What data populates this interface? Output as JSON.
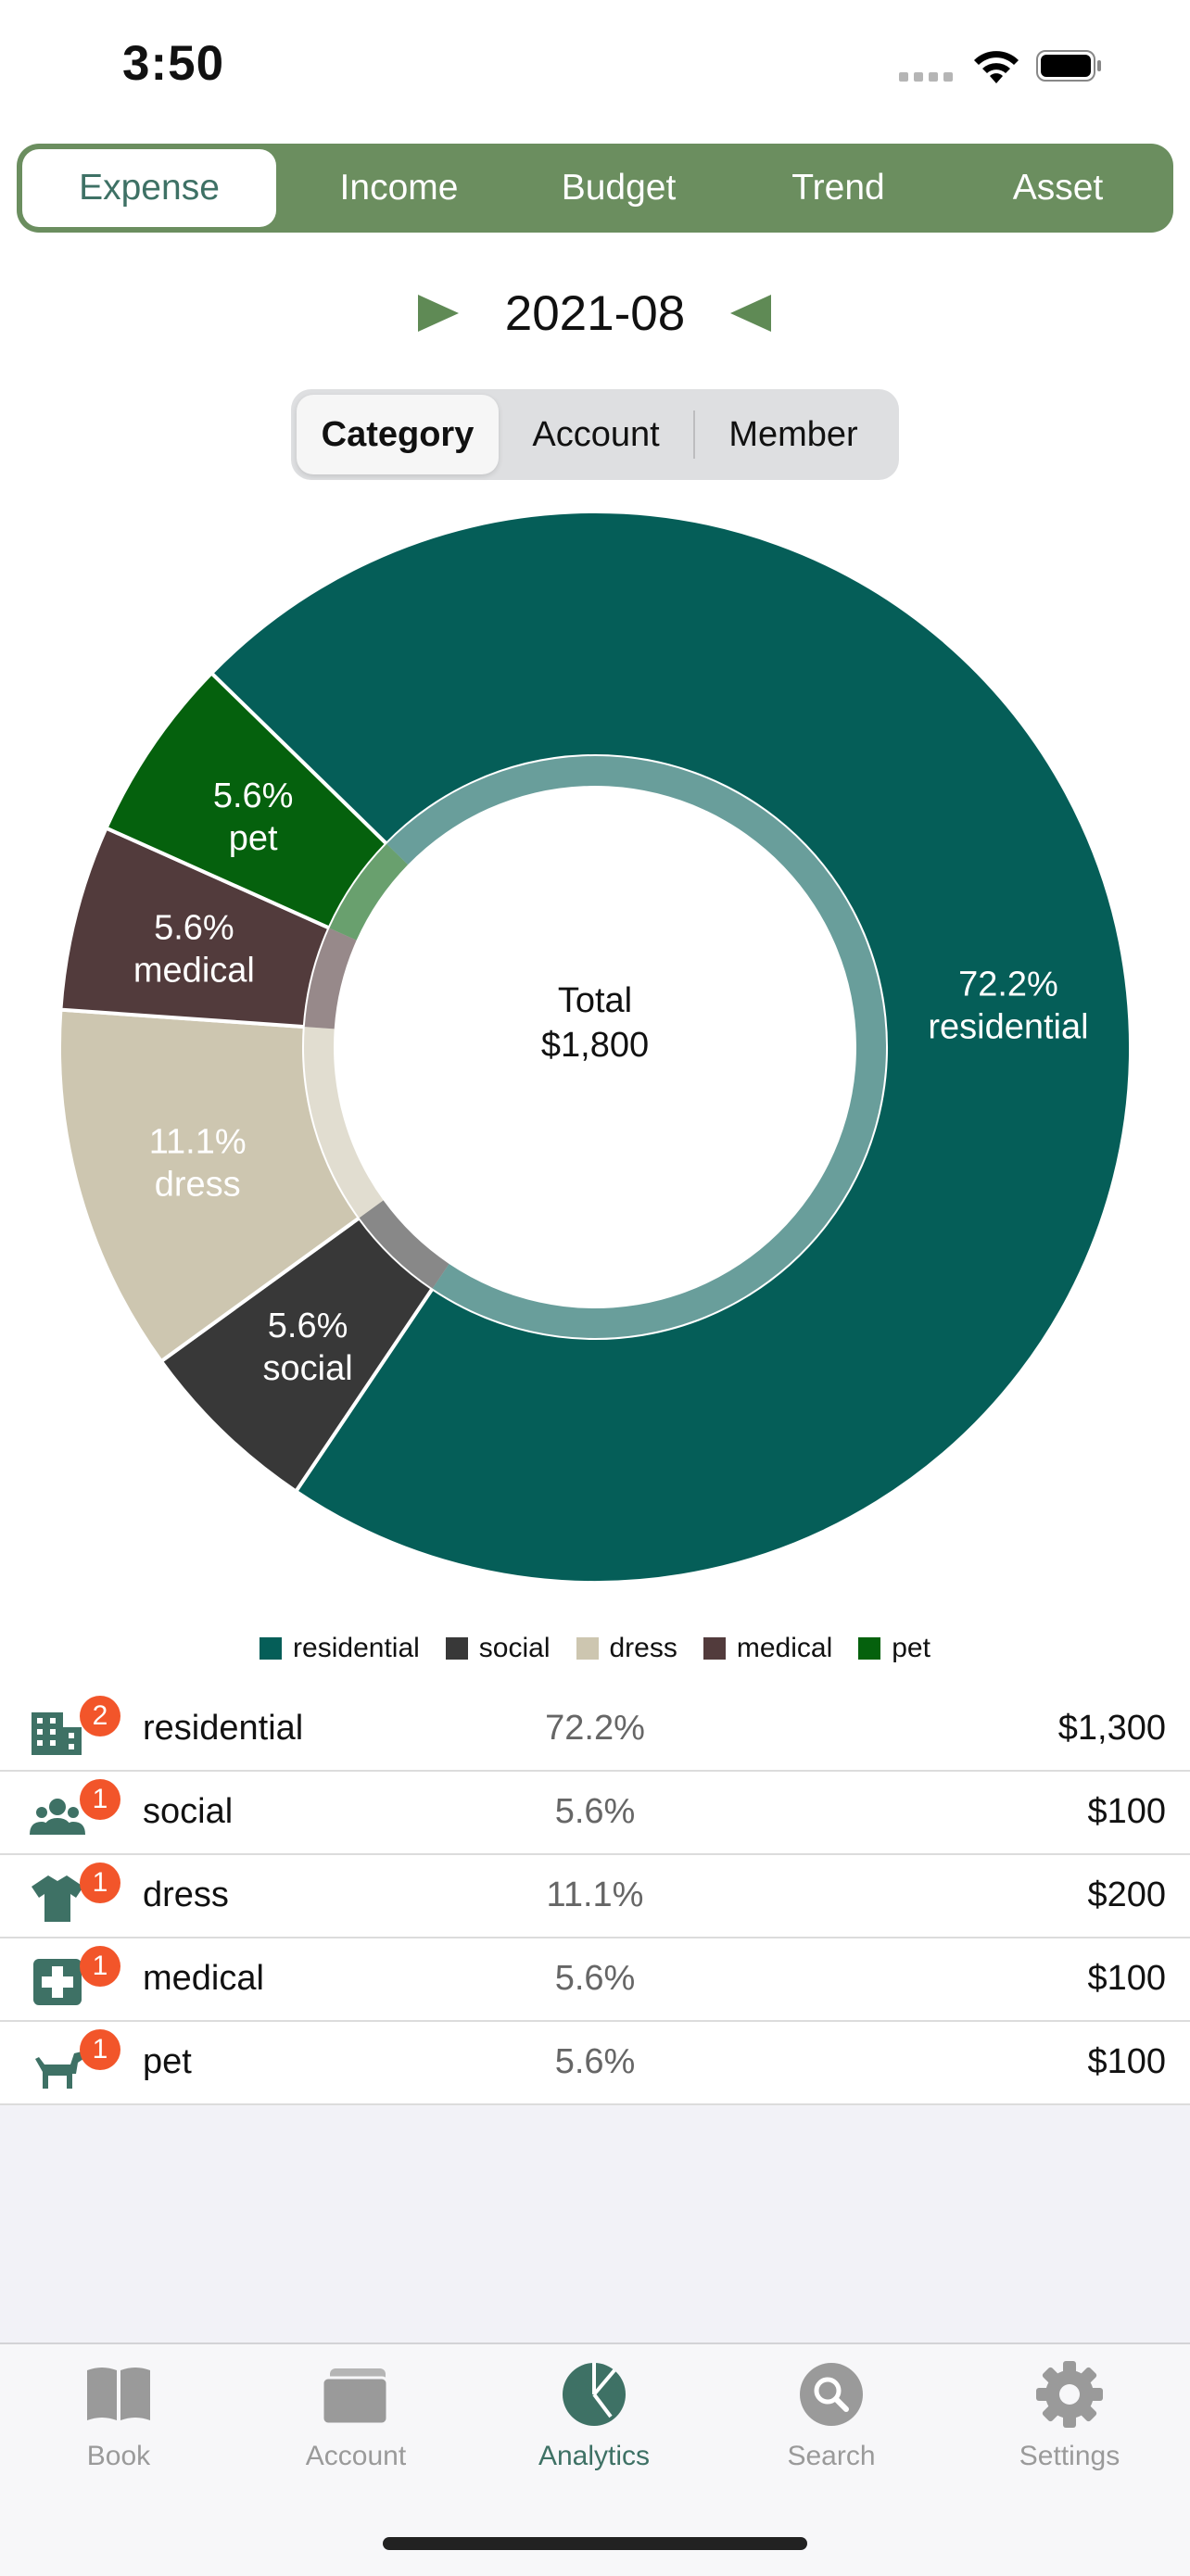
{
  "status_bar": {
    "time": "3:50"
  },
  "top_tabs": [
    {
      "label": "Expense",
      "active": true
    },
    {
      "label": "Income",
      "active": false
    },
    {
      "label": "Budget",
      "active": false
    },
    {
      "label": "Trend",
      "active": false
    },
    {
      "label": "Asset",
      "active": false
    }
  ],
  "period": {
    "label": "2021-08"
  },
  "sub_tabs": [
    {
      "label": "Category",
      "active": true
    },
    {
      "label": "Account",
      "active": false
    },
    {
      "label": "Member",
      "active": false
    }
  ],
  "chart_data": {
    "type": "pie",
    "center_label": "Total",
    "center_value": "$1,800",
    "categories": [
      "residential",
      "social",
      "dress",
      "medical",
      "pet"
    ],
    "values": [
      72.2,
      5.6,
      11.1,
      5.6,
      5.6
    ],
    "value_labels": [
      "72.2%",
      "5.6%",
      "11.1%",
      "5.6%",
      "5.6%"
    ],
    "colors": [
      "#055e58",
      "#383838",
      "#cdc6b0",
      "#523b3c",
      "#05610d"
    ],
    "legend_position": "bottom"
  },
  "categories": [
    {
      "name": "residential",
      "count": "2",
      "percent": "72.2%",
      "amount": "$1,300",
      "icon": "building-icon"
    },
    {
      "name": "social",
      "count": "1",
      "percent": "5.6%",
      "amount": "$100",
      "icon": "people-icon"
    },
    {
      "name": "dress",
      "count": "1",
      "percent": "11.1%",
      "amount": "$200",
      "icon": "shirt-icon"
    },
    {
      "name": "medical",
      "count": "1",
      "percent": "5.6%",
      "amount": "$100",
      "icon": "medical-cross-icon"
    },
    {
      "name": "pet",
      "count": "1",
      "percent": "5.6%",
      "amount": "$100",
      "icon": "dog-icon"
    }
  ],
  "tab_bar": [
    {
      "label": "Book",
      "icon": "book-icon",
      "active": false
    },
    {
      "label": "Account",
      "icon": "wallet-icon",
      "active": false
    },
    {
      "label": "Analytics",
      "icon": "pie-chart-icon",
      "active": true
    },
    {
      "label": "Search",
      "icon": "search-icon",
      "active": false
    },
    {
      "label": "Settings",
      "icon": "gear-icon",
      "active": false
    }
  ],
  "colors": {
    "accent": "#3e7165",
    "header_green": "#6b8e5f",
    "badge": "#f2552a"
  }
}
